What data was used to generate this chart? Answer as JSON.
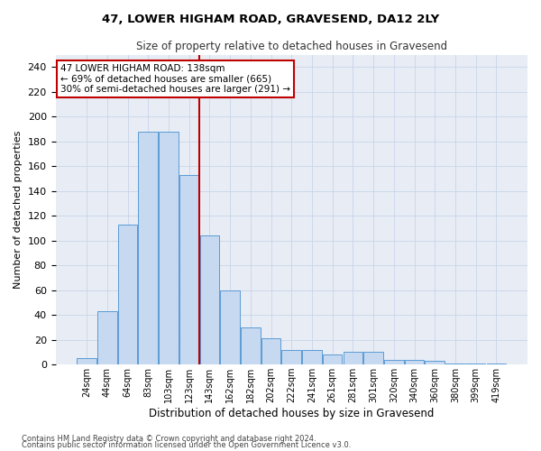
{
  "title": "47, LOWER HIGHAM ROAD, GRAVESEND, DA12 2LY",
  "subtitle": "Size of property relative to detached houses in Gravesend",
  "xlabel": "Distribution of detached houses by size in Gravesend",
  "ylabel": "Number of detached properties",
  "categories": [
    "24sqm",
    "44sqm",
    "64sqm",
    "83sqm",
    "103sqm",
    "123sqm",
    "143sqm",
    "162sqm",
    "182sqm",
    "202sqm",
    "222sqm",
    "241sqm",
    "261sqm",
    "281sqm",
    "301sqm",
    "320sqm",
    "340sqm",
    "360sqm",
    "380sqm",
    "399sqm",
    "419sqm"
  ],
  "values": [
    5,
    43,
    113,
    188,
    188,
    153,
    104,
    60,
    30,
    21,
    12,
    12,
    8,
    10,
    10,
    4,
    4,
    3,
    1,
    1,
    1
  ],
  "bar_color": "#c6d9f0",
  "bar_edge_color": "#5b9bd5",
  "vline_color": "#c00000",
  "annotation_text": "47 LOWER HIGHAM ROAD: 138sqm\n← 69% of detached houses are smaller (665)\n30% of semi-detached houses are larger (291) →",
  "annotation_box_color": "#ffffff",
  "annotation_box_edge": "#c00000",
  "ylim": [
    0,
    250
  ],
  "yticks": [
    0,
    20,
    40,
    60,
    80,
    100,
    120,
    140,
    160,
    180,
    200,
    220,
    240
  ],
  "background_color": "#ffffff",
  "plot_bg_color": "#e8edf5",
  "grid_color": "#c8d4e8",
  "footer_line1": "Contains HM Land Registry data © Crown copyright and database right 2024.",
  "footer_line2": "Contains public sector information licensed under the Open Government Licence v3.0."
}
